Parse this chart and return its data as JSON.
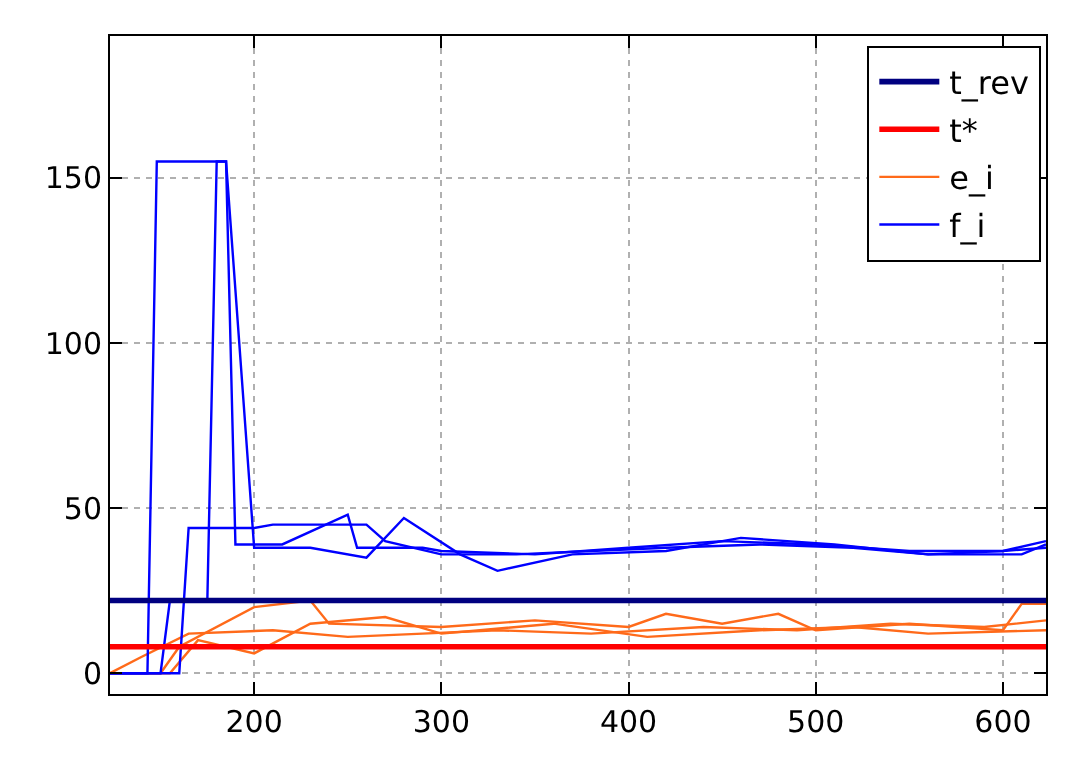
{
  "chart_data": {
    "type": "line",
    "xlim": [
      123,
      623
    ],
    "ylim": [
      -6.3,
      193
    ],
    "xticks": [
      200,
      300,
      400,
      500,
      600
    ],
    "yticks": [
      0,
      50,
      100,
      150
    ],
    "grid": true,
    "legend": "top right",
    "marker": "none",
    "line_style": "solid",
    "series": [
      {
        "name": "t_rev",
        "color": "#000080",
        "x": [
          123,
          623
        ],
        "values": [
          22,
          22
        ]
      },
      {
        "name": "t*",
        "color": "#ff0000",
        "x": [
          123,
          623
        ],
        "values": [
          8,
          8
        ]
      },
      {
        "name": "e_i",
        "color": "#ff6a1a",
        "x": [
          123,
          150,
          160,
          200,
          230,
          240,
          300,
          350,
          400,
          420,
          450,
          480,
          500,
          550,
          600,
          610,
          623
        ],
        "values": [
          0,
          0,
          8,
          20,
          22,
          15,
          14,
          16,
          14,
          18,
          15,
          18,
          13,
          15,
          13,
          21,
          21
        ]
      },
      {
        "color": "#ff6a1a",
        "x": [
          123,
          140,
          165,
          210,
          250,
          290,
          330,
          380,
          440,
          490,
          540,
          590,
          623
        ],
        "values": [
          0,
          5,
          12,
          13,
          11,
          12,
          13,
          12,
          14,
          13,
          15,
          14,
          16
        ]
      },
      {
        "color": "#ff6a1a",
        "x": [
          123,
          155,
          170,
          200,
          230,
          270,
          300,
          360,
          410,
          470,
          520,
          560,
          623
        ],
        "values": [
          0,
          0,
          10,
          6,
          15,
          17,
          12,
          15,
          11,
          13,
          14,
          12,
          13
        ]
      },
      {
        "name": "f_i",
        "color": "#0000ff",
        "x": [
          123,
          143,
          148,
          185,
          190,
          215,
          250,
          255,
          290,
          300,
          350,
          400,
          450,
          500,
          550,
          600,
          623
        ],
        "values": [
          0,
          0,
          155,
          155,
          39,
          39,
          48,
          38,
          38,
          37,
          36,
          38,
          40,
          39,
          37,
          37,
          38
        ]
      },
      {
        "color": "#0000ff",
        "x": [
          123,
          160,
          165,
          200,
          210,
          260,
          270,
          300,
          320,
          340,
          380,
          420,
          470,
          520,
          560,
          600,
          623
        ],
        "values": [
          0,
          0,
          44,
          44,
          45,
          45,
          40,
          36,
          36,
          36,
          37,
          38,
          39,
          38,
          36,
          37,
          40
        ]
      },
      {
        "color": "#0000ff",
        "x": [
          123,
          150,
          155,
          175,
          180,
          185,
          200,
          230,
          260,
          280,
          310,
          330,
          370,
          420,
          460,
          510,
          560,
          610,
          623
        ],
        "values": [
          0,
          0,
          22,
          22,
          155,
          155,
          38,
          38,
          35,
          47,
          36,
          31,
          36,
          37,
          41,
          39,
          36,
          36,
          39
        ]
      }
    ]
  }
}
